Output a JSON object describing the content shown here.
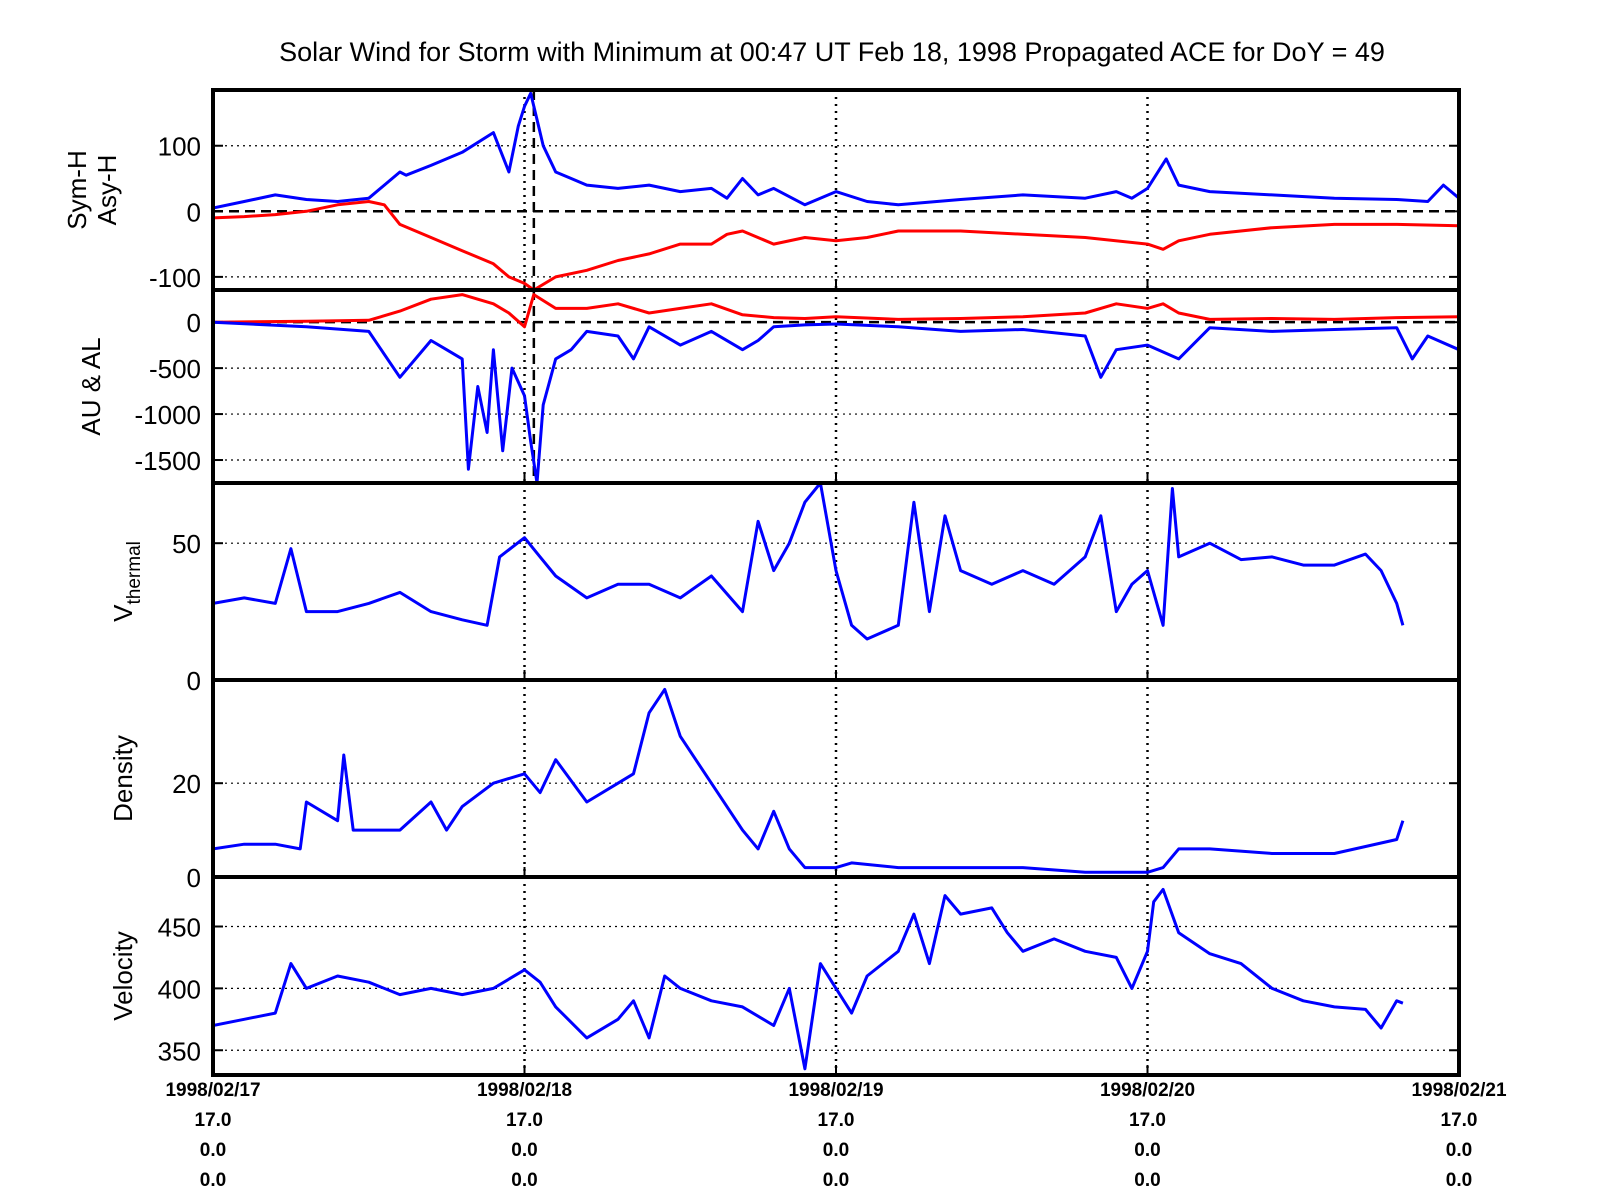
{
  "title": "Solar Wind for Storm with Minimum at 00:47 UT Feb 18, 1998  Propagated ACE for DoY = 49",
  "colors": {
    "blue": "#0000ff",
    "red": "#ff0000",
    "axis": "#000000"
  },
  "x_axis": {
    "range_days": [
      0,
      4
    ],
    "ticks": [
      {
        "x": 0,
        "lines": [
          "1998/02/17",
          "17.0",
          "0.0",
          "0.0"
        ]
      },
      {
        "x": 1,
        "lines": [
          "1998/02/18",
          "17.0",
          "0.0",
          "0.0"
        ]
      },
      {
        "x": 2,
        "lines": [
          "1998/02/19",
          "17.0",
          "0.0",
          "0.0"
        ]
      },
      {
        "x": 3,
        "lines": [
          "1998/02/20",
          "17.0",
          "0.0",
          "0.0"
        ]
      },
      {
        "x": 4,
        "lines": [
          "1998/02/21",
          "17.0",
          "0.0",
          "0.0"
        ]
      }
    ],
    "storm_minimum_day": 1.03
  },
  "chart_data": [
    {
      "type": "line",
      "ylabel": [
        "Sym-H",
        "Asy-H"
      ],
      "ylim": [
        -120,
        185
      ],
      "yticks": [
        100,
        0,
        -100
      ],
      "ytick_labels": [
        "100",
        "0",
        "-100"
      ],
      "zero_line": true,
      "series": [
        {
          "name": "Asy-H",
          "color": "#0000ff",
          "x": [
            0,
            0.1,
            0.2,
            0.3,
            0.4,
            0.5,
            0.6,
            0.62,
            0.7,
            0.8,
            0.9,
            0.95,
            0.98,
            1.0,
            1.02,
            1.04,
            1.06,
            1.1,
            1.15,
            1.2,
            1.3,
            1.4,
            1.5,
            1.6,
            1.65,
            1.7,
            1.75,
            1.8,
            1.9,
            2.0,
            2.1,
            2.2,
            2.4,
            2.6,
            2.8,
            2.9,
            2.95,
            3.0,
            3.06,
            3.1,
            3.2,
            3.4,
            3.6,
            3.8,
            3.9,
            3.95,
            4.0
          ],
          "y": [
            5,
            15,
            25,
            18,
            15,
            20,
            60,
            55,
            70,
            90,
            120,
            60,
            130,
            160,
            180,
            140,
            100,
            60,
            50,
            40,
            35,
            40,
            30,
            35,
            20,
            50,
            25,
            35,
            10,
            30,
            15,
            10,
            18,
            25,
            20,
            30,
            20,
            35,
            80,
            40,
            30,
            25,
            20,
            18,
            15,
            40,
            20
          ]
        },
        {
          "name": "Sym-H",
          "color": "#ff0000",
          "x": [
            0,
            0.1,
            0.2,
            0.3,
            0.4,
            0.5,
            0.55,
            0.6,
            0.7,
            0.8,
            0.9,
            0.95,
            1.0,
            1.03,
            1.1,
            1.2,
            1.3,
            1.4,
            1.5,
            1.6,
            1.65,
            1.7,
            1.8,
            1.9,
            2.0,
            2.1,
            2.2,
            2.4,
            2.6,
            2.8,
            3.0,
            3.05,
            3.1,
            3.2,
            3.4,
            3.6,
            3.8,
            4.0
          ],
          "y": [
            -10,
            -8,
            -5,
            0,
            10,
            15,
            10,
            -20,
            -40,
            -60,
            -80,
            -100,
            -110,
            -120,
            -100,
            -90,
            -75,
            -65,
            -50,
            -50,
            -35,
            -30,
            -50,
            -40,
            -45,
            -40,
            -30,
            -30,
            -35,
            -40,
            -50,
            -58,
            -45,
            -35,
            -25,
            -20,
            -20,
            -22
          ]
        }
      ]
    },
    {
      "type": "line",
      "ylabel": [
        "AU & AL"
      ],
      "ylim": [
        -1750,
        350
      ],
      "yticks": [
        0,
        -500,
        -1000,
        -1500
      ],
      "ytick_labels": [
        "0",
        "-500",
        "-1000",
        "-1500"
      ],
      "zero_line": true,
      "series": [
        {
          "name": "AU",
          "color": "#ff0000",
          "x": [
            0,
            0.3,
            0.5,
            0.6,
            0.7,
            0.8,
            0.9,
            0.95,
            1.0,
            1.03,
            1.1,
            1.2,
            1.3,
            1.4,
            1.5,
            1.6,
            1.7,
            1.8,
            1.9,
            2.0,
            2.2,
            2.4,
            2.6,
            2.8,
            2.9,
            3.0,
            3.05,
            3.1,
            3.2,
            3.4,
            3.6,
            3.8,
            4.0
          ],
          "y": [
            0,
            10,
            20,
            120,
            250,
            300,
            200,
            100,
            -50,
            300,
            150,
            150,
            200,
            100,
            150,
            200,
            80,
            50,
            40,
            60,
            30,
            40,
            60,
            100,
            200,
            150,
            200,
            100,
            30,
            40,
            30,
            50,
            60
          ]
        },
        {
          "name": "AL",
          "color": "#0000ff",
          "x": [
            0,
            0.3,
            0.5,
            0.6,
            0.7,
            0.75,
            0.8,
            0.82,
            0.85,
            0.88,
            0.9,
            0.93,
            0.96,
            1.0,
            1.02,
            1.04,
            1.06,
            1.1,
            1.15,
            1.2,
            1.3,
            1.35,
            1.4,
            1.5,
            1.6,
            1.7,
            1.75,
            1.8,
            1.9,
            2.0,
            2.2,
            2.4,
            2.6,
            2.8,
            2.85,
            2.9,
            3.0,
            3.1,
            3.2,
            3.4,
            3.6,
            3.8,
            3.85,
            3.9,
            4.0
          ],
          "y": [
            0,
            -50,
            -100,
            -600,
            -200,
            -300,
            -400,
            -1600,
            -700,
            -1200,
            -300,
            -1400,
            -500,
            -800,
            -1300,
            -1750,
            -900,
            -400,
            -300,
            -100,
            -150,
            -400,
            -50,
            -250,
            -100,
            -300,
            -200,
            -50,
            -30,
            -20,
            -50,
            -100,
            -80,
            -150,
            -600,
            -300,
            -250,
            -400,
            -60,
            -100,
            -80,
            -60,
            -400,
            -150,
            -300
          ]
        }
      ]
    },
    {
      "type": "line",
      "ylabel": [
        "V",
        "thermal"
      ],
      "ylim": [
        0,
        72
      ],
      "yticks": [
        50,
        0
      ],
      "ytick_labels": [
        "50",
        "0"
      ],
      "zero_line": false,
      "series": [
        {
          "name": "V_thermal",
          "color": "#0000ff",
          "x": [
            0,
            0.1,
            0.2,
            0.25,
            0.3,
            0.4,
            0.5,
            0.6,
            0.7,
            0.8,
            0.88,
            0.92,
            1.0,
            1.05,
            1.1,
            1.2,
            1.3,
            1.4,
            1.5,
            1.6,
            1.7,
            1.75,
            1.8,
            1.85,
            1.9,
            1.95,
            2.0,
            2.05,
            2.1,
            2.2,
            2.25,
            2.3,
            2.35,
            2.4,
            2.5,
            2.6,
            2.7,
            2.8,
            2.85,
            2.9,
            2.95,
            3.0,
            3.05,
            3.08,
            3.1,
            3.2,
            3.3,
            3.4,
            3.5,
            3.6,
            3.7,
            3.75,
            3.8,
            3.82
          ],
          "y": [
            28,
            30,
            28,
            48,
            25,
            25,
            28,
            32,
            25,
            22,
            20,
            45,
            52,
            45,
            38,
            30,
            35,
            35,
            30,
            38,
            25,
            58,
            40,
            50,
            65,
            72,
            40,
            20,
            15,
            20,
            65,
            25,
            60,
            40,
            35,
            40,
            35,
            45,
            60,
            25,
            35,
            40,
            20,
            70,
            45,
            50,
            44,
            45,
            42,
            42,
            46,
            40,
            28,
            20
          ]
        }
      ]
    },
    {
      "type": "line",
      "ylabel": [
        "Density"
      ],
      "ylim": [
        0,
        42
      ],
      "yticks": [
        20,
        0
      ],
      "ytick_labels": [
        "20",
        "0"
      ],
      "zero_line": false,
      "series": [
        {
          "name": "Density",
          "color": "#0000ff",
          "x": [
            0,
            0.1,
            0.2,
            0.28,
            0.3,
            0.4,
            0.42,
            0.45,
            0.5,
            0.6,
            0.7,
            0.75,
            0.8,
            0.9,
            1.0,
            1.05,
            1.1,
            1.2,
            1.3,
            1.35,
            1.4,
            1.45,
            1.5,
            1.55,
            1.6,
            1.7,
            1.75,
            1.8,
            1.85,
            1.9,
            2.0,
            2.05,
            2.2,
            2.4,
            2.6,
            2.8,
            3.0,
            3.05,
            3.1,
            3.2,
            3.4,
            3.6,
            3.8,
            3.82
          ],
          "y": [
            6,
            7,
            7,
            6,
            16,
            12,
            26,
            10,
            10,
            10,
            16,
            10,
            15,
            20,
            22,
            18,
            25,
            16,
            20,
            22,
            35,
            40,
            30,
            25,
            20,
            10,
            6,
            14,
            6,
            2,
            2,
            3,
            2,
            2,
            2,
            1,
            1,
            2,
            6,
            6,
            5,
            5,
            8,
            12
          ]
        }
      ]
    },
    {
      "type": "line",
      "ylabel": [
        "Velocity"
      ],
      "ylim": [
        330,
        490
      ],
      "yticks": [
        450,
        400,
        350
      ],
      "ytick_labels": [
        "450",
        "400",
        "350"
      ],
      "zero_line": false,
      "series": [
        {
          "name": "Velocity",
          "color": "#0000ff",
          "x": [
            0,
            0.1,
            0.2,
            0.25,
            0.3,
            0.4,
            0.5,
            0.6,
            0.7,
            0.8,
            0.9,
            1.0,
            1.05,
            1.1,
            1.2,
            1.3,
            1.35,
            1.4,
            1.45,
            1.5,
            1.6,
            1.7,
            1.8,
            1.85,
            1.9,
            1.95,
            2.0,
            2.05,
            2.1,
            2.2,
            2.25,
            2.3,
            2.35,
            2.4,
            2.5,
            2.55,
            2.6,
            2.7,
            2.8,
            2.9,
            2.95,
            3.0,
            3.02,
            3.05,
            3.1,
            3.2,
            3.3,
            3.4,
            3.5,
            3.6,
            3.7,
            3.75,
            3.8,
            3.82
          ],
          "y": [
            370,
            375,
            380,
            420,
            400,
            410,
            405,
            395,
            400,
            395,
            400,
            415,
            405,
            385,
            360,
            375,
            390,
            360,
            410,
            400,
            390,
            385,
            370,
            400,
            335,
            420,
            400,
            380,
            410,
            430,
            460,
            420,
            475,
            460,
            465,
            445,
            430,
            440,
            430,
            425,
            400,
            430,
            470,
            480,
            445,
            428,
            420,
            400,
            390,
            385,
            383,
            368,
            390,
            388
          ]
        }
      ]
    }
  ]
}
